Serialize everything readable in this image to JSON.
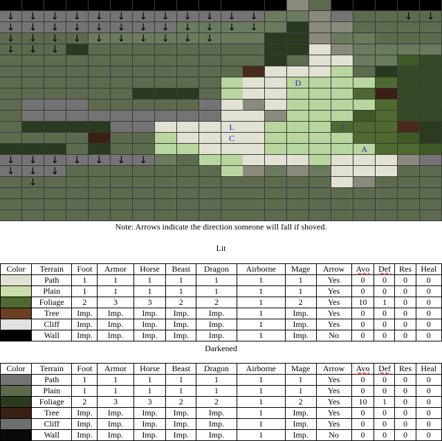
{
  "map": {
    "cols": 20,
    "rows": 20,
    "palette": {
      "W": "#000000",
      "P": "#5c6b4e",
      "p": "#6a7b5d",
      "G": "#747474",
      "g": "#8a8a7c",
      "F": "#2a3a1f",
      "f": "#364a28",
      "T": "#4a2a1a",
      "r": "#3a1f14",
      "L": "#e2e2d4",
      "l": "#c8dda8",
      "Q": "#b8d79e",
      "O": "#4e6a2e",
      "o": "#3f5a24",
      "c": "#d8d8d8"
    },
    "grid": [
      "WWWWWWWWWWWWWgwWWWWW",
      "GGGGGGGGGGGGppgGPPPP",
      "GGGGGGGGpppppFggPPPP",
      "PPPPppppppppFFgppPPP",
      "PPPFPPPPPPPPFFLgpppp",
      "PPPPPPPPPPPPFPLLppof",
      "PPPPPPPPPPPTLLLQPFff",
      "PPPPPPPPPPQLLQQQQOff",
      "PPPPPPFFFPQLLQQQOrff",
      "PGGGPPPPPGLgLQQQQOff",
      "PGGGGGGGGGLLgQQQoOff",
      "PFFFFGGLLLLLQQQOOOTF",
      "PPPPrPPQLLLLQQQQOOoF",
      "FFFPFPPQQLLLQQQQQOOo",
      "GGGGGGGpPQQLLLQLLLgG",
      "GGGPPPPPPPQgpgpLLLPP",
      "PPPPPPPPPPPPPPPLgPPP",
      "PPPPPPPPPPPPPPPPPPPP",
      "PPPPPPPPPPPPPPPPPPPP",
      "PPPPPPPPPPPPPPPPPPPP"
    ],
    "arrows": [
      [
        1,
        0
      ],
      [
        1,
        1
      ],
      [
        1,
        2
      ],
      [
        1,
        3
      ],
      [
        1,
        4
      ],
      [
        1,
        5
      ],
      [
        1,
        6
      ],
      [
        1,
        7
      ],
      [
        1,
        8
      ],
      [
        1,
        9
      ],
      [
        1,
        10
      ],
      [
        1,
        11
      ],
      [
        1,
        18
      ],
      [
        1,
        19
      ],
      [
        2,
        0
      ],
      [
        2,
        1
      ],
      [
        2,
        2
      ],
      [
        2,
        3
      ],
      [
        2,
        4
      ],
      [
        2,
        5
      ],
      [
        2,
        6
      ],
      [
        2,
        7
      ],
      [
        2,
        8
      ],
      [
        2,
        9
      ],
      [
        2,
        10
      ],
      [
        2,
        11
      ],
      [
        3,
        0
      ],
      [
        3,
        1
      ],
      [
        3,
        2
      ],
      [
        3,
        3
      ],
      [
        3,
        4
      ],
      [
        3,
        5
      ],
      [
        3,
        6
      ],
      [
        3,
        7
      ],
      [
        3,
        8
      ],
      [
        3,
        9
      ],
      [
        4,
        0
      ],
      [
        4,
        1
      ],
      [
        4,
        2
      ],
      [
        14,
        0
      ],
      [
        14,
        1
      ],
      [
        14,
        2
      ],
      [
        14,
        3
      ],
      [
        14,
        4
      ],
      [
        14,
        5
      ],
      [
        14,
        6
      ],
      [
        15,
        0
      ],
      [
        15,
        1
      ],
      [
        15,
        2
      ],
      [
        16,
        1
      ]
    ],
    "arrow_glyph": "↓",
    "units": [
      {
        "label": "D",
        "row": 7,
        "col": 13
      },
      {
        "label": "L",
        "row": 11,
        "col": 10
      },
      {
        "label": "J",
        "row": 11,
        "col": 15
      },
      {
        "label": "C",
        "row": 12,
        "col": 10
      },
      {
        "label": "A",
        "row": 13,
        "col": 16
      }
    ]
  },
  "note": "Note: Arrows indicate the direction someone will fall if shoved.",
  "headers": [
    "Color",
    "Terrain",
    "Foot",
    "Armor",
    "Horse",
    "Beast",
    "Dragon",
    "Airborne",
    "Mage",
    "Arrow",
    "Avo",
    "Def",
    "Res",
    "Heal"
  ],
  "lit": {
    "title": "Lit",
    "rows": [
      {
        "color": "#e2e2d4",
        "cells": [
          "Path",
          "1",
          "1",
          "1",
          "1",
          "1",
          "1",
          "1",
          "Yes",
          "0",
          "0",
          "0",
          "0"
        ]
      },
      {
        "color": "#c8dda8",
        "cells": [
          "Plain",
          "1",
          "1",
          "1",
          "1",
          "1",
          "1",
          "1",
          "Yes",
          "0",
          "0",
          "0",
          "0"
        ]
      },
      {
        "color": "#4e6a2e",
        "cells": [
          "Foliage",
          "2",
          "3",
          "3",
          "2",
          "2",
          "1",
          "2",
          "Yes",
          "10",
          "1",
          "0",
          "0"
        ]
      },
      {
        "color": "#6b3f22",
        "cells": [
          "Tree",
          "Imp.",
          "Imp.",
          "Imp.",
          "Imp.",
          "Imp.",
          "1",
          "Imp.",
          "Yes",
          "0",
          "0",
          "0",
          "0"
        ]
      },
      {
        "color": "#e0e0e0",
        "cells": [
          "Cliff",
          "Imp.",
          "Imp.",
          "Imp.",
          "Imp.",
          "Imp.",
          "1",
          "Imp.",
          "Yes",
          "0",
          "0",
          "0",
          "0"
        ]
      },
      {
        "color": "#000000",
        "cells": [
          "Wall",
          "Imp.",
          "Imp.",
          "Imp.",
          "Imp.",
          "Imp.",
          "1",
          "Imp.",
          "No",
          "0",
          "0",
          "0",
          "0"
        ]
      }
    ]
  },
  "dark": {
    "title": "Darkened",
    "rows": [
      {
        "color": "#747474",
        "cells": [
          "Path",
          "1",
          "1",
          "1",
          "1",
          "1",
          "1",
          "1",
          "Yes",
          "0",
          "0",
          "0",
          "0"
        ]
      },
      {
        "color": "#5c6b4e",
        "cells": [
          "Plain",
          "1",
          "1",
          "1",
          "1",
          "1",
          "1",
          "1",
          "Yes",
          "0",
          "0",
          "0",
          "0"
        ]
      },
      {
        "color": "#2a3a1f",
        "cells": [
          "Foliage",
          "2",
          "3",
          "3",
          "2",
          "2",
          "1",
          "2",
          "Yes",
          "10",
          "1",
          "0",
          "0"
        ]
      },
      {
        "color": "#3a1f14",
        "cells": [
          "Tree",
          "Imp.",
          "Imp.",
          "Imp.",
          "Imp.",
          "Imp.",
          "1",
          "Imp.",
          "Yes",
          "0",
          "0",
          "0",
          "0"
        ]
      },
      {
        "color": "#6e6e6e",
        "cells": [
          "Cliff",
          "Imp.",
          "Imp.",
          "Imp.",
          "Imp.",
          "Imp.",
          "1",
          "Imp.",
          "Yes",
          "0",
          "0",
          "0",
          "0"
        ]
      },
      {
        "color": "#0a0a0a",
        "cells": [
          "Wall",
          "Imp.",
          "Imp.",
          "Imp.",
          "Imp.",
          "Imp.",
          "1",
          "Imp.",
          "No",
          "0",
          "0",
          "0",
          "0"
        ]
      }
    ]
  }
}
